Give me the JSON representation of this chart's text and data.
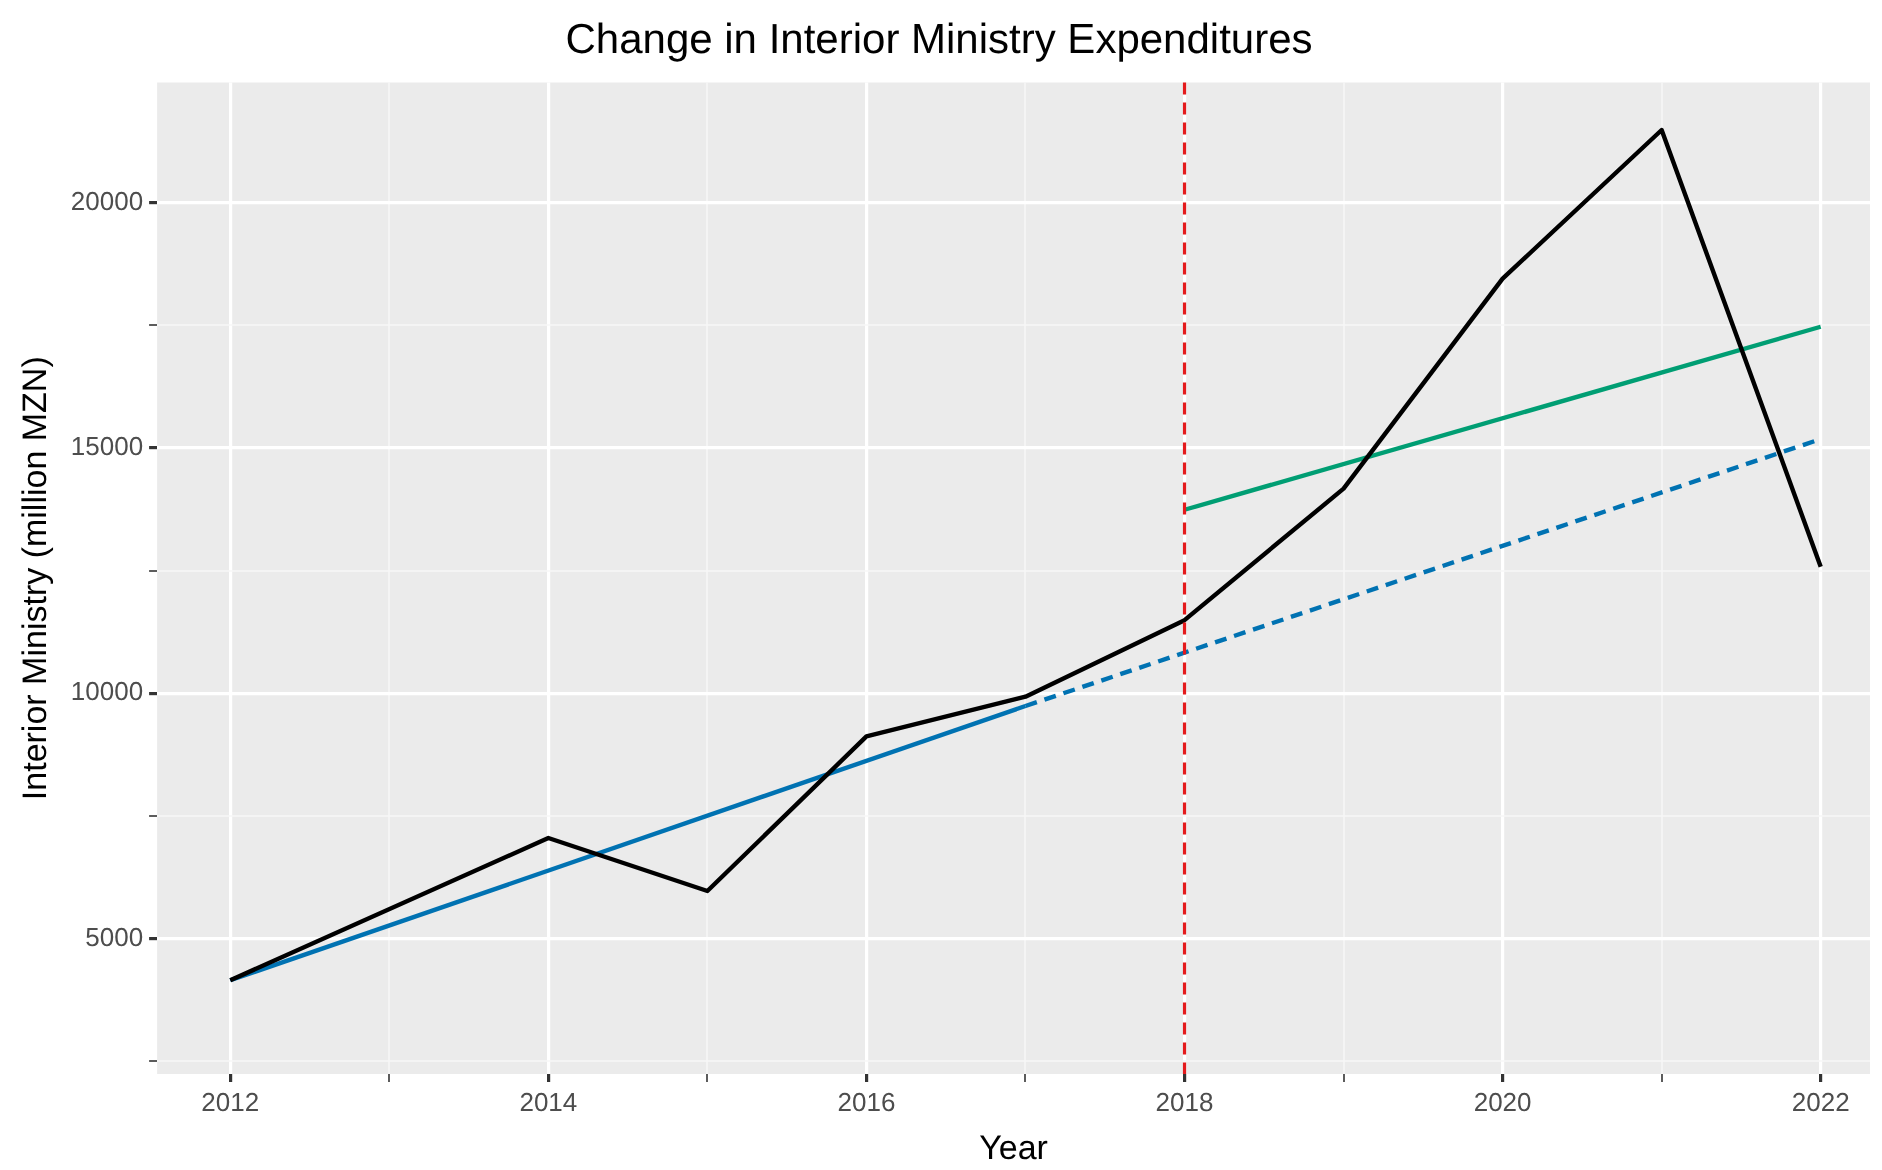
{
  "chart_data": {
    "type": "line",
    "title": "Change in Interior Ministry Expenditures",
    "xlabel": "Year",
    "ylabel": "Interior Ministry (million MZN)",
    "xlim": [
      2011.54,
      2022.31
    ],
    "ylim": [
      2240,
      22450
    ],
    "xticks": [
      2012,
      {
        "value": 2013,
        "label": null
      },
      2014,
      {
        "value": 2015,
        "label": null
      },
      2016,
      {
        "value": 2017,
        "label": null
      },
      2018,
      {
        "value": 2019,
        "label": null
      },
      2020,
      {
        "value": 2021,
        "label": null
      },
      2022
    ],
    "yticks": [
      {
        "value": 2500,
        "label": null
      },
      5000,
      {
        "value": 7500,
        "label": null
      },
      10000,
      {
        "value": 12500,
        "label": null
      },
      15000,
      {
        "value": 17500,
        "label": null
      },
      20000
    ],
    "grid": true,
    "legend": false,
    "marker": "none",
    "series": [
      {
        "type": "line",
        "color": "#000000",
        "x": [
          2012,
          2014,
          2015,
          2016,
          2017,
          2018,
          2019,
          2020,
          2021,
          2022
        ],
        "values": [
          4150,
          7050,
          5970,
          9120,
          9930,
          11490,
          14170,
          18450,
          21480,
          12580
        ]
      },
      {
        "type": "line",
        "color": "#0072b2",
        "x": [
          2012,
          2017
        ],
        "values": [
          4150,
          9740
        ]
      },
      {
        "type": "line",
        "color": "#0072b2",
        "line_style": "dashed",
        "x": [
          2017,
          2022
        ],
        "values": [
          9740,
          15180
        ]
      },
      {
        "type": "line",
        "color": "#009e73",
        "x": [
          2018,
          2022
        ],
        "values": [
          13740,
          17470
        ]
      }
    ],
    "ref_lines": [
      {
        "axis": "x",
        "value": 2018,
        "color": "#e41a1c",
        "line_style": "dashed"
      }
    ]
  }
}
